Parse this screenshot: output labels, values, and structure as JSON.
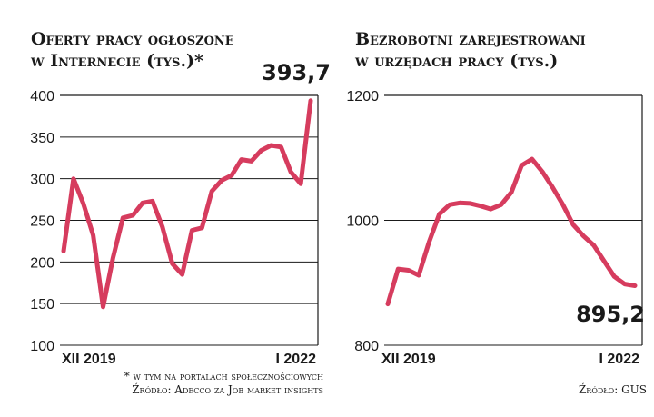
{
  "colors": {
    "line": "#d63c5e",
    "text": "#1a1a1a"
  },
  "chart_data": [
    {
      "type": "line",
      "title_lines": [
        "Oferty pracy ogłoszone",
        "w Internecie (tys.)*"
      ],
      "xlabel": "",
      "ylabel": "",
      "ylim": [
        100,
        400
      ],
      "yticks": [
        100,
        150,
        200,
        250,
        300,
        350,
        400
      ],
      "ytick_labels": [
        "100",
        "150",
        "200",
        "250",
        "300",
        "350",
        "400"
      ],
      "x_range_labels": [
        "XII 2019",
        "I 2022"
      ],
      "grid": true,
      "values": [
        213,
        300,
        270,
        232,
        146,
        205,
        253,
        256,
        271,
        273,
        242,
        198,
        185,
        238,
        241,
        285,
        298,
        304,
        323,
        321,
        334,
        340,
        338,
        308,
        294,
        393.7
      ],
      "callout": "393,7",
      "notes": [
        "* w tym na portalach społecznościowych",
        "Źródło: Adecco za Job market insights"
      ]
    },
    {
      "type": "line",
      "title_lines": [
        "Bezrobotni zarejestrowani",
        "w urzędach pracy (tys.)"
      ],
      "xlabel": "",
      "ylabel": "",
      "ylim": [
        800,
        1200
      ],
      "yticks": [
        800,
        1000,
        1200
      ],
      "ytick_labels": [
        "800",
        "1000",
        "1200"
      ],
      "x_range_labels": [
        "XII 2019",
        "I 2022"
      ],
      "grid": true,
      "values": [
        866,
        922,
        920,
        912,
        965,
        1010,
        1025,
        1028,
        1027,
        1023,
        1018,
        1025,
        1045,
        1088,
        1098,
        1078,
        1053,
        1025,
        993,
        975,
        960,
        935,
        910,
        898,
        895.2
      ],
      "callout": "895,2",
      "notes": [
        "Źródło: GUS"
      ]
    }
  ]
}
